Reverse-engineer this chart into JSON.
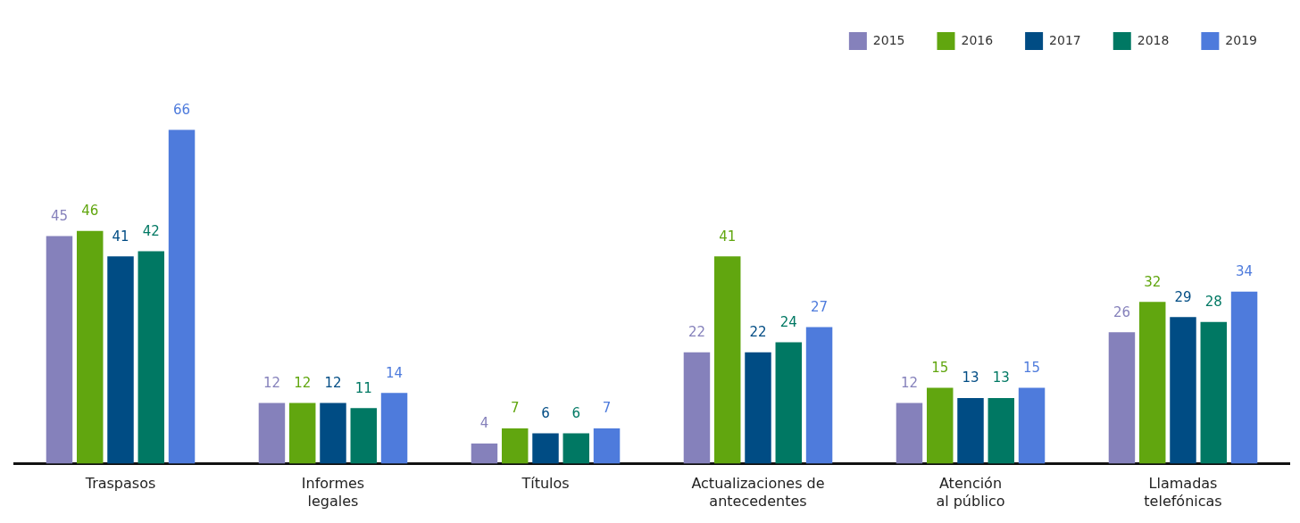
{
  "chart_data": {
    "type": "bar",
    "categories": [
      "Traspasos",
      "Informes\nlegales",
      "Títulos",
      "Actualizaciones de\nantecedentes",
      "Atención\nal público",
      "Llamadas\ntelefónicas"
    ],
    "series": [
      {
        "name": "2015",
        "color": "#8581bb",
        "values": [
          45,
          12,
          4,
          22,
          12,
          26
        ]
      },
      {
        "name": "2016",
        "color": "#61a60f",
        "values": [
          46,
          12,
          7,
          41,
          15,
          32
        ]
      },
      {
        "name": "2017",
        "color": "#004c84",
        "values": [
          41,
          12,
          6,
          22,
          13,
          29
        ]
      },
      {
        "name": "2018",
        "color": "#007863",
        "values": [
          42,
          11,
          6,
          24,
          13,
          28
        ]
      },
      {
        "name": "2019",
        "color": "#4e7bdc",
        "values": [
          66,
          14,
          7,
          27,
          15,
          34
        ]
      }
    ],
    "data_labels": true,
    "legend": "top right",
    "grid": false,
    "tick_labels": "x"
  }
}
